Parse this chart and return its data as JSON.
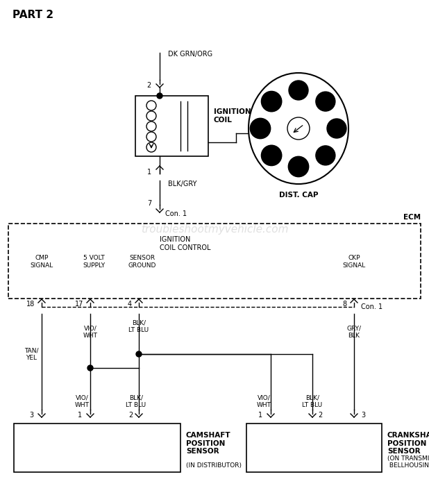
{
  "title": "PART 2",
  "watermark": "troubleshootmyvehicle.com",
  "bg_color": "#ffffff",
  "line_color": "#000000",
  "wire_label_top": "DK GRN/ORG",
  "coil_label": "IGNITION\nCOIL",
  "wire_label_blk_gry": "BLK/GRY",
  "con1_label": "Con. 1",
  "ecm_label": "ECM",
  "ignition_coil_control": "IGNITION\nCOIL CONTROL",
  "cmp_signal": "CMP\nSIGNAL",
  "volt_supply": "5 VOLT\nSUPPLY",
  "sensor_ground": "SENSOR\nGROUND",
  "ckp_signal": "CKP\nSIGNAL",
  "cam_label": "CAMSHAFT\nPOSITION\nSENSOR",
  "cam_sublabel": "(IN DISTRIBUTOR)",
  "crank_label": "CRANKSHAFT\nPOSITION\nSENSOR",
  "crank_sublabel": "(ON TRANSMISSION\n BELLHOUSING)"
}
